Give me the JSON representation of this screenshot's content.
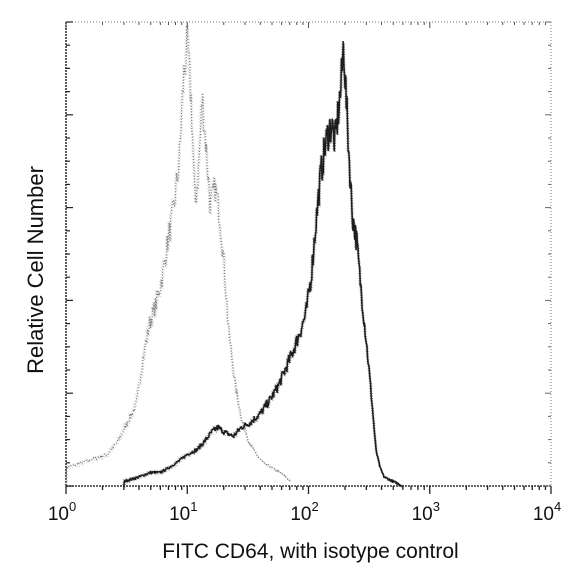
{
  "chart_data": {
    "type": "area",
    "xscale": "log",
    "xlim": [
      1,
      10000
    ],
    "ylim": [
      0,
      1
    ],
    "xlabel": "FITC CD64, with isotype control",
    "ylabel": "Relative Cell Number",
    "x_ticks": [
      {
        "base": "10",
        "exp": "0",
        "value": 1
      },
      {
        "base": "10",
        "exp": "1",
        "value": 10
      },
      {
        "base": "10",
        "exp": "2",
        "value": 100
      },
      {
        "base": "10",
        "exp": "3",
        "value": 1000
      },
      {
        "base": "10",
        "exp": "4",
        "value": 10000
      }
    ],
    "grid": false,
    "legend": "none",
    "series": [
      {
        "style": "dotted-gray",
        "color": "#7a7a7a",
        "x": [
          1,
          1.3,
          1.7,
          2.2,
          2.7,
          3.2,
          3.8,
          4.3,
          4.9,
          5.5,
          6.2,
          7.0,
          7.8,
          8.6,
          9.3,
          10,
          10.8,
          11.6,
          12.4,
          13.3,
          14.3,
          15.5,
          17,
          18.5,
          20,
          22,
          25,
          28,
          32,
          37,
          43,
          50,
          58,
          65,
          72
        ],
        "values": [
          0.04,
          0.05,
          0.06,
          0.07,
          0.1,
          0.14,
          0.18,
          0.28,
          0.36,
          0.4,
          0.46,
          0.55,
          0.62,
          0.72,
          0.9,
          0.98,
          0.85,
          0.62,
          0.7,
          0.86,
          0.75,
          0.62,
          0.66,
          0.6,
          0.5,
          0.34,
          0.22,
          0.15,
          0.1,
          0.07,
          0.05,
          0.04,
          0.03,
          0.02,
          0.01
        ]
      },
      {
        "style": "solid-dark",
        "color": "#1e1e1e",
        "x": [
          3,
          4,
          5,
          6,
          7,
          8,
          9,
          10,
          12,
          14,
          16,
          18,
          20,
          24,
          28,
          33,
          40,
          48,
          56,
          65,
          75,
          85,
          95,
          105,
          115,
          125,
          135,
          145,
          155,
          165,
          175,
          185,
          195,
          205,
          215,
          230,
          250,
          270,
          300,
          330,
          360,
          390,
          420,
          500,
          600
        ],
        "values": [
          0.01,
          0.02,
          0.03,
          0.03,
          0.04,
          0.05,
          0.06,
          0.07,
          0.08,
          0.1,
          0.12,
          0.13,
          0.12,
          0.11,
          0.13,
          0.14,
          0.16,
          0.19,
          0.22,
          0.26,
          0.3,
          0.34,
          0.38,
          0.46,
          0.58,
          0.68,
          0.74,
          0.78,
          0.8,
          0.76,
          0.82,
          0.88,
          0.98,
          0.85,
          0.74,
          0.6,
          0.54,
          0.44,
          0.32,
          0.2,
          0.08,
          0.04,
          0.02,
          0.01,
          0.0
        ]
      }
    ]
  }
}
